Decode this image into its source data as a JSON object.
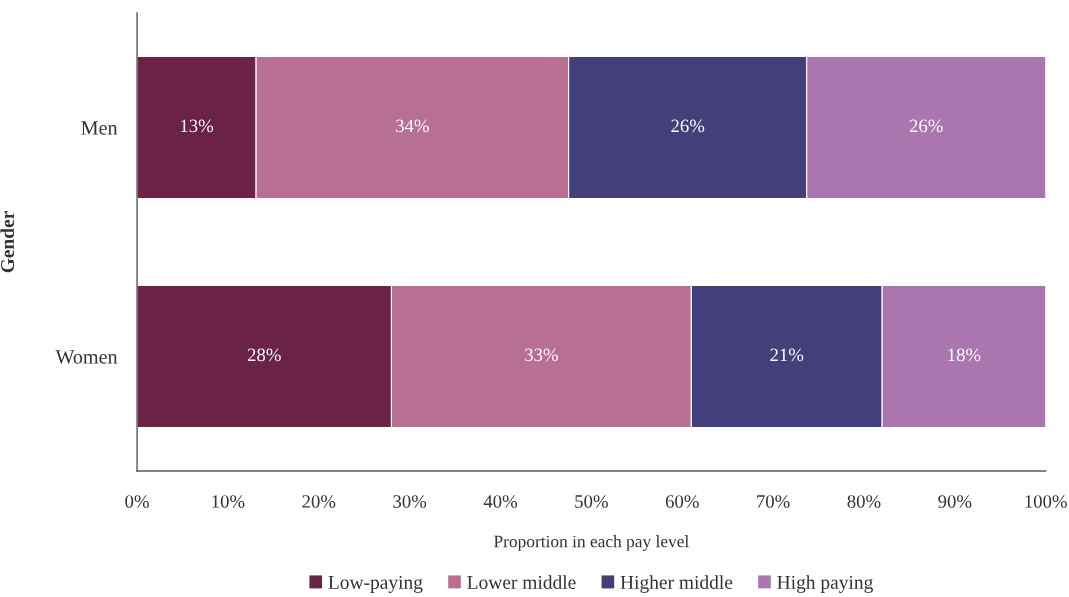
{
  "chart_data": {
    "type": "bar",
    "orientation": "horizontal",
    "stacked": true,
    "categories": [
      "Men",
      "Women"
    ],
    "xlabel": "Proportion in each pay level",
    "ylabel": "Gender",
    "xlim": [
      0,
      100
    ],
    "xticks": [
      {
        "value": 0,
        "label": "0%"
      },
      {
        "value": 10,
        "label": "10%"
      },
      {
        "value": 20,
        "label": "20%"
      },
      {
        "value": 30,
        "label": "30%"
      },
      {
        "value": 40,
        "label": "40%"
      },
      {
        "value": 50,
        "label": "50%"
      },
      {
        "value": 60,
        "label": "60%"
      },
      {
        "value": 70,
        "label": "70%"
      },
      {
        "value": 80,
        "label": "80%"
      },
      {
        "value": 90,
        "label": "90%"
      },
      {
        "value": 100,
        "label": "100%"
      }
    ],
    "series": [
      {
        "name": "Low-paying",
        "color": "#6a2245",
        "values": [
          13.1,
          28
        ],
        "value_labels": [
          "13%",
          "28%"
        ]
      },
      {
        "name": "Lower middle",
        "color": "#b87092",
        "values": [
          34.4,
          33
        ],
        "value_labels": [
          "34%",
          "33%"
        ]
      },
      {
        "name": "Higher middle",
        "color": "#433f7a",
        "values": [
          26.2,
          21
        ],
        "value_labels": [
          "26%",
          "21%"
        ]
      },
      {
        "name": "High paying",
        "color": "#ab76b0",
        "values": [
          26.3,
          18
        ],
        "value_labels": [
          "26%",
          "18%"
        ]
      }
    ],
    "legend": "bottom",
    "grid": false
  }
}
